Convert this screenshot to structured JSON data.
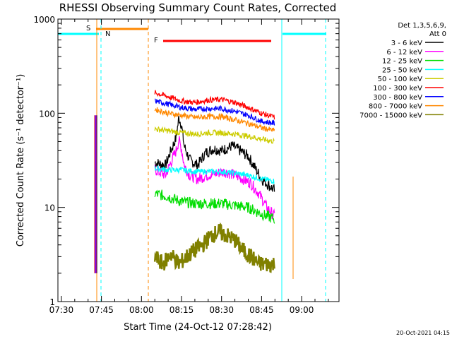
{
  "chart_data": {
    "type": "line",
    "title": "RHESSI Observing Summary Count Rates, Corrected",
    "xlabel": "Start Time (24-Oct-12 07:28:42)",
    "ylabel": "Corrected Count Rate (s⁻¹ detector⁻¹)",
    "y_scale": "log",
    "ylim": [
      1,
      1000
    ],
    "xlim_minutes": [
      "07:28:42",
      "09:14:00"
    ],
    "x_ticks": [
      "07:30",
      "07:45",
      "08:00",
      "08:15",
      "08:30",
      "08:45",
      "09:00"
    ],
    "y_ticks": [
      "1",
      "10",
      "100",
      "1000"
    ],
    "legend": {
      "placement": "right",
      "header": [
        "Det 1,3,5,6,9,",
        "Att 0"
      ],
      "entries": [
        {
          "label": "3 - 6 keV",
          "color": "#000000"
        },
        {
          "label": "6 - 12 keV",
          "color": "#ff00ff"
        },
        {
          "label": "12 - 25 keV",
          "color": "#00dd00"
        },
        {
          "label": "25 - 50 keV",
          "color": "#00ffff"
        },
        {
          "label": "50 - 100 keV",
          "color": "#cccc00"
        },
        {
          "label": "100 - 300 keV",
          "color": "#ff0000"
        },
        {
          "label": "300 - 800 keV",
          "color": "#0000ff"
        },
        {
          "label": "800 - 7000 keV",
          "color": "#ff8800"
        },
        {
          "label": "7000 - 15000 keV",
          "color": "#808000"
        }
      ]
    },
    "flags": [
      {
        "label": "S",
        "color": "#ff8800"
      },
      {
        "label": "N",
        "color": "#00ffff"
      },
      {
        "label": "F",
        "color": "#ff0000"
      }
    ],
    "series": [
      {
        "name": "3 - 6 keV",
        "color": "#000000",
        "points": [
          [
            "08:05",
            30
          ],
          [
            "08:09",
            28
          ],
          [
            "08:11",
            40
          ],
          [
            "08:13",
            55
          ],
          [
            "08:14",
            90
          ],
          [
            "08:15",
            75
          ],
          [
            "08:16",
            45
          ],
          [
            "08:18",
            32
          ],
          [
            "08:21",
            28
          ],
          [
            "08:24",
            38
          ],
          [
            "08:27",
            42
          ],
          [
            "08:30",
            40
          ],
          [
            "08:34",
            45
          ],
          [
            "08:37",
            40
          ],
          [
            "08:40",
            35
          ],
          [
            "08:43",
            25
          ],
          [
            "08:45",
            20
          ],
          [
            "08:47",
            18
          ],
          [
            "08:50",
            15
          ]
        ]
      },
      {
        "name": "6 - 12 keV",
        "color": "#ff00ff",
        "points": [
          [
            "08:05",
            25
          ],
          [
            "08:09",
            22
          ],
          [
            "08:11",
            30
          ],
          [
            "08:13",
            40
          ],
          [
            "08:14",
            52
          ],
          [
            "08:15",
            42
          ],
          [
            "08:16",
            28
          ],
          [
            "08:18",
            22
          ],
          [
            "08:21",
            20
          ],
          [
            "08:25",
            22
          ],
          [
            "08:28",
            23
          ],
          [
            "08:31",
            24
          ],
          [
            "08:35",
            22
          ],
          [
            "08:38",
            20
          ],
          [
            "08:41",
            18
          ],
          [
            "08:44",
            14
          ],
          [
            "08:47",
            10
          ],
          [
            "08:50",
            8
          ]
        ]
      },
      {
        "name": "12 - 25 keV",
        "color": "#00dd00",
        "points": [
          [
            "08:05",
            14
          ],
          [
            "08:10",
            13
          ],
          [
            "08:15",
            11.5
          ],
          [
            "08:20",
            11
          ],
          [
            "08:25",
            11
          ],
          [
            "08:30",
            11
          ],
          [
            "08:35",
            10.5
          ],
          [
            "08:40",
            10
          ],
          [
            "08:45",
            8.5
          ],
          [
            "08:50",
            7.5
          ]
        ]
      },
      {
        "name": "25 - 50 keV",
        "color": "#00ffff",
        "points": [
          [
            "08:05",
            26
          ],
          [
            "08:10",
            25
          ],
          [
            "08:15",
            25
          ],
          [
            "08:20",
            24
          ],
          [
            "08:25",
            24
          ],
          [
            "08:30",
            24
          ],
          [
            "08:35",
            23
          ],
          [
            "08:40",
            22
          ],
          [
            "08:45",
            20
          ],
          [
            "08:50",
            19
          ]
        ]
      },
      {
        "name": "50 - 100 keV",
        "color": "#cccc00",
        "points": [
          [
            "08:05",
            68
          ],
          [
            "08:10",
            65
          ],
          [
            "08:15",
            62
          ],
          [
            "08:20",
            60
          ],
          [
            "08:25",
            62
          ],
          [
            "08:30",
            62
          ],
          [
            "08:35",
            60
          ],
          [
            "08:40",
            57
          ],
          [
            "08:45",
            53
          ],
          [
            "08:50",
            50
          ]
        ]
      },
      {
        "name": "100 - 300 keV",
        "color": "#ff0000",
        "points": [
          [
            "08:05",
            165
          ],
          [
            "08:10",
            150
          ],
          [
            "08:15",
            135
          ],
          [
            "08:20",
            130
          ],
          [
            "08:25",
            138
          ],
          [
            "08:30",
            140
          ],
          [
            "08:35",
            130
          ],
          [
            "08:40",
            115
          ],
          [
            "08:45",
            100
          ],
          [
            "08:50",
            90
          ]
        ]
      },
      {
        "name": "300 - 800 keV",
        "color": "#0000ff",
        "points": [
          [
            "08:05",
            135
          ],
          [
            "08:10",
            125
          ],
          [
            "08:15",
            115
          ],
          [
            "08:20",
            110
          ],
          [
            "08:25",
            112
          ],
          [
            "08:30",
            112
          ],
          [
            "08:35",
            105
          ],
          [
            "08:40",
            95
          ],
          [
            "08:45",
            82
          ],
          [
            "08:50",
            78
          ]
        ]
      },
      {
        "name": "800 - 7000 keV",
        "color": "#ff8800",
        "points": [
          [
            "08:05",
            110
          ],
          [
            "08:10",
            100
          ],
          [
            "08:15",
            95
          ],
          [
            "08:20",
            90
          ],
          [
            "08:25",
            92
          ],
          [
            "08:30",
            92
          ],
          [
            "08:35",
            85
          ],
          [
            "08:40",
            78
          ],
          [
            "08:45",
            70
          ],
          [
            "08:50",
            65
          ]
        ]
      },
      {
        "name": "7000 - 15000 keV",
        "color": "#808000",
        "points": [
          [
            "08:05",
            3
          ],
          [
            "08:08",
            2.5
          ],
          [
            "08:11",
            3.2
          ],
          [
            "08:14",
            2.5
          ],
          [
            "08:17",
            3.0
          ],
          [
            "08:20",
            3.5
          ],
          [
            "08:23",
            4.0
          ],
          [
            "08:26",
            5.0
          ],
          [
            "08:29",
            5.5
          ],
          [
            "08:32",
            5.0
          ],
          [
            "08:35",
            4.5
          ],
          [
            "08:38",
            3.5
          ],
          [
            "08:41",
            3.0
          ],
          [
            "08:44",
            2.5
          ],
          [
            "08:47",
            2.5
          ],
          [
            "08:50",
            2.5
          ]
        ]
      }
    ]
  },
  "footer": {
    "timestamp": "20-Oct-2021 04:15"
  }
}
